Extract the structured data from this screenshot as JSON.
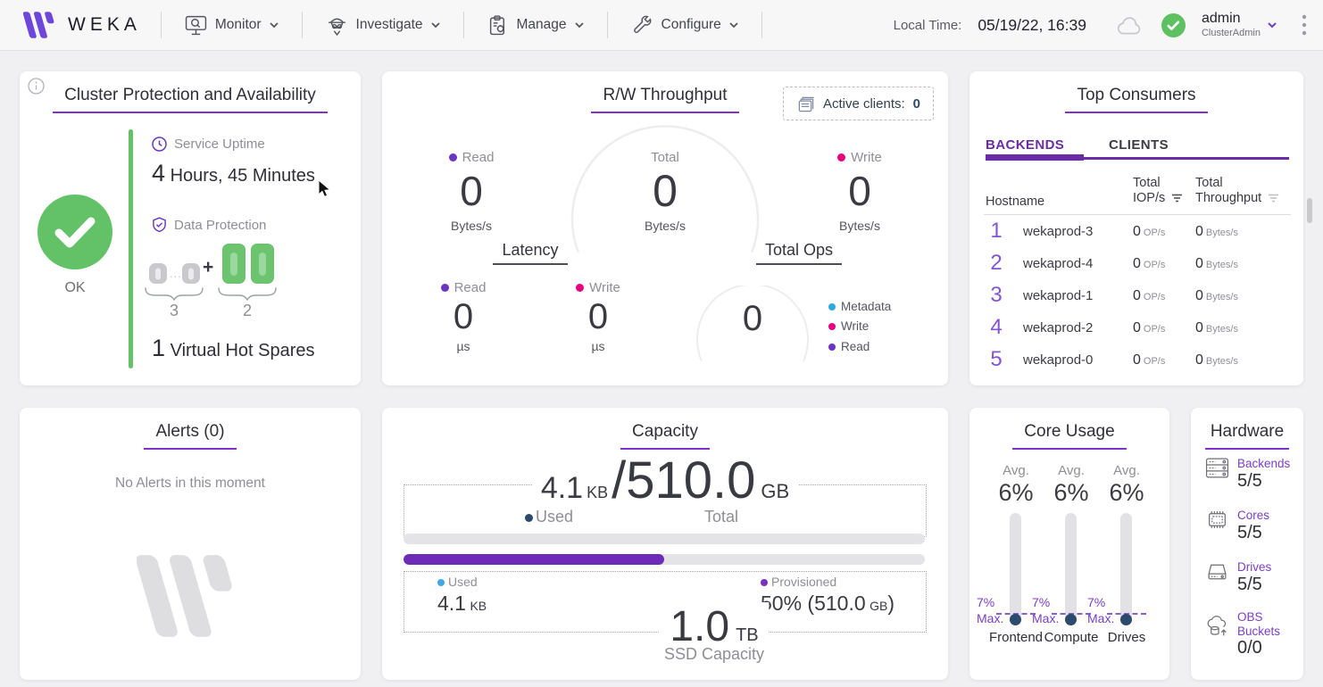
{
  "nav": {
    "brand": "WEKA",
    "menus": [
      {
        "label": "Monitor",
        "icon": "monitor-icon"
      },
      {
        "label": "Investigate",
        "icon": "investigate-icon"
      },
      {
        "label": "Manage",
        "icon": "manage-icon"
      },
      {
        "label": "Configure",
        "icon": "configure-icon"
      }
    ],
    "local_time_label": "Local Time:",
    "local_time_value": "05/19/22, 16:39",
    "user_name": "admin",
    "user_role": "ClusterAdmin"
  },
  "cluster": {
    "title": "Cluster Protection and Availability",
    "status_label": "OK",
    "uptime_label": "Service Uptime",
    "uptime_value": "4",
    "uptime_text": "Hours, 45 Minutes",
    "protection_label": "Data Protection",
    "data_dots": "...",
    "plus_sign": "+",
    "data_count": "3",
    "protection_count": "2",
    "spares_value": "1",
    "spares_text": "Virtual Hot Spares"
  },
  "throughput": {
    "title": "R/W Throughput",
    "active_clients_label": "Active clients:",
    "active_clients_value": "0",
    "read": {
      "label": "Read",
      "value": "0",
      "unit": "Bytes/s"
    },
    "total": {
      "label": "Total",
      "value": "0",
      "unit": "Bytes/s"
    },
    "write": {
      "label": "Write",
      "value": "0",
      "unit": "Bytes/s"
    },
    "latency": {
      "title": "Latency",
      "read": {
        "label": "Read",
        "value": "0",
        "unit": "µs"
      },
      "write": {
        "label": "Write",
        "value": "0",
        "unit": "µs"
      }
    },
    "total_ops": {
      "title": "Total Ops",
      "value": "0",
      "legend": [
        {
          "label": "Metadata",
          "color": "#2ea8e0"
        },
        {
          "label": "Write",
          "color": "#e6007e"
        },
        {
          "label": "Read",
          "color": "#6a35c2"
        }
      ]
    }
  },
  "top_consumers": {
    "title": "Top Consumers",
    "tabs": [
      {
        "label": "BACKENDS"
      },
      {
        "label": "CLIENTS"
      }
    ],
    "col_hostname": "Hostname",
    "col_iops_line1": "Total",
    "col_iops_line2": "IOP/s",
    "col_tp_line1": "Total",
    "col_tp_line2": "Throughput",
    "rows": [
      {
        "rank": "1",
        "hostname": "wekaprod-3",
        "iops": "0",
        "iops_unit": "OP/s",
        "tp": "0",
        "tp_unit": "Bytes/s"
      },
      {
        "rank": "2",
        "hostname": "wekaprod-4",
        "iops": "0",
        "iops_unit": "OP/s",
        "tp": "0",
        "tp_unit": "Bytes/s"
      },
      {
        "rank": "3",
        "hostname": "wekaprod-1",
        "iops": "0",
        "iops_unit": "OP/s",
        "tp": "0",
        "tp_unit": "Bytes/s"
      },
      {
        "rank": "4",
        "hostname": "wekaprod-2",
        "iops": "0",
        "iops_unit": "OP/s",
        "tp": "0",
        "tp_unit": "Bytes/s"
      },
      {
        "rank": "5",
        "hostname": "wekaprod-0",
        "iops": "0",
        "iops_unit": "OP/s",
        "tp": "0",
        "tp_unit": "Bytes/s"
      }
    ]
  },
  "alerts": {
    "title": "Alerts (0)",
    "empty_text": "No Alerts in this moment"
  },
  "capacity": {
    "title": "Capacity",
    "used_value": "4.1",
    "used_unit": "KB",
    "slash": "/",
    "total_value": "510.0",
    "total_unit": "GB",
    "used_label": "Used",
    "total_label": "Total",
    "provisioned_percent": 50,
    "ssd": {
      "used_label": "Used",
      "used_value": "4.1",
      "used_unit": "KB",
      "provisioned_label": "Provisioned",
      "provisioned_value": "50% (510.0",
      "provisioned_unit": "GB",
      "provisioned_close": ")",
      "total_value": "1.0",
      "total_unit": "TB",
      "caption": "SSD Capacity"
    }
  },
  "core_usage": {
    "title": "Core Usage",
    "avg_label": "Avg.",
    "max_label": "Max.",
    "columns": [
      {
        "name": "Frontend",
        "avg": "6%",
        "max": "7%"
      },
      {
        "name": "Compute",
        "avg": "6%",
        "max": "7%"
      },
      {
        "name": "Drives",
        "avg": "6%",
        "max": "7%"
      }
    ]
  },
  "hardware": {
    "title": "Hardware",
    "items": [
      {
        "icon": "server-icon",
        "label": "Backends",
        "value": "5/5"
      },
      {
        "icon": "cpu-icon",
        "label": "Cores",
        "value": "5/5"
      },
      {
        "icon": "drive-icon",
        "label": "Drives",
        "value": "5/5"
      },
      {
        "icon": "obs-buckets-icon",
        "label": "OBS Buckets",
        "value": "0/0"
      }
    ]
  },
  "colors": {
    "accent_purple": "#8031c9",
    "green": "#63c167",
    "magenta": "#e6007e",
    "blue": "#2ea8e0",
    "navy": "#2c4a6e"
  }
}
